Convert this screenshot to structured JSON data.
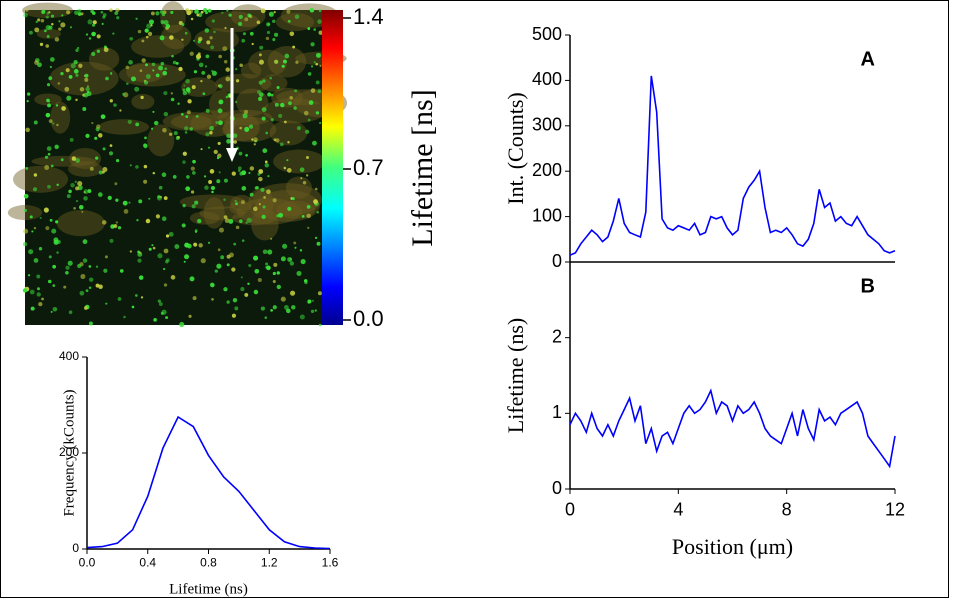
{
  "chart_data": [
    {
      "type": "colorbar",
      "clabel": "Lifetime [ns]",
      "clim": [
        0,
        1.4
      ],
      "cticks": [
        {
          "value": 0,
          "label": "0.0"
        },
        0.7,
        1.4
      ]
    },
    {
      "type": "line",
      "xlabel": "Lifetime (ns)",
      "ylabel": "Frequency (kCounts)",
      "x": [
        0,
        0.1,
        0.2,
        0.3,
        0.4,
        0.5,
        0.6,
        0.7,
        0.8,
        0.9,
        1.0,
        1.1,
        1.2,
        1.3,
        1.4,
        1.5,
        1.6
      ],
      "series": [
        {
          "color": "#0000ff",
          "values": [
            3,
            5,
            12,
            40,
            110,
            210,
            275,
            255,
            195,
            150,
            120,
            80,
            40,
            15,
            5,
            2,
            1
          ]
        }
      ],
      "xlim": [
        0,
        1.6
      ],
      "xticks": [
        {
          "value": 0,
          "label": "0.0"
        },
        0.4,
        0.8,
        1.2,
        1.6
      ],
      "ylim": [
        0,
        400
      ],
      "yticks": [
        0,
        200,
        400
      ]
    },
    {
      "type": "line",
      "annotation": "A",
      "ylabel": "Int. (Counts)",
      "x": [
        0,
        0.2,
        0.4,
        0.6,
        0.8,
        1,
        1.2,
        1.4,
        1.6,
        1.8,
        2,
        2.2,
        2.4,
        2.6,
        2.8,
        3,
        3.2,
        3.4,
        3.6,
        3.8,
        4,
        4.2,
        4.4,
        4.6,
        4.8,
        5,
        5.2,
        5.4,
        5.6,
        5.8,
        6,
        6.2,
        6.4,
        6.6,
        6.8,
        7,
        7.2,
        7.4,
        7.6,
        7.8,
        8,
        8.2,
        8.4,
        8.6,
        8.8,
        9,
        9.2,
        9.4,
        9.6,
        9.8,
        10,
        10.2,
        10.4,
        10.6,
        10.8,
        11,
        11.2,
        11.4,
        11.6,
        11.8,
        12
      ],
      "series": [
        {
          "color": "#0000ff",
          "values": [
            15,
            20,
            40,
            55,
            70,
            60,
            45,
            55,
            90,
            140,
            85,
            65,
            60,
            55,
            110,
            410,
            330,
            95,
            75,
            70,
            80,
            75,
            70,
            85,
            60,
            65,
            100,
            95,
            100,
            75,
            60,
            70,
            140,
            165,
            180,
            200,
            120,
            65,
            70,
            65,
            75,
            60,
            40,
            35,
            50,
            85,
            160,
            120,
            130,
            90,
            100,
            85,
            80,
            100,
            80,
            60,
            50,
            40,
            25,
            20,
            25
          ]
        }
      ],
      "xlim": [
        0,
        12
      ],
      "ylim": [
        0,
        500
      ],
      "yticks": [
        0,
        100,
        200,
        300,
        400,
        500
      ]
    },
    {
      "type": "line",
      "annotation": "B",
      "ylabel": "Lifetime (ns)",
      "xlabel": "Position (μm)",
      "x": [
        0,
        0.2,
        0.4,
        0.6,
        0.8,
        1,
        1.2,
        1.4,
        1.6,
        1.8,
        2,
        2.2,
        2.4,
        2.6,
        2.8,
        3,
        3.2,
        3.4,
        3.6,
        3.8,
        4,
        4.2,
        4.4,
        4.6,
        4.8,
        5,
        5.2,
        5.4,
        5.6,
        5.8,
        6,
        6.2,
        6.4,
        6.6,
        6.8,
        7,
        7.2,
        7.4,
        7.6,
        7.8,
        8,
        8.2,
        8.4,
        8.6,
        8.8,
        9,
        9.2,
        9.4,
        9.6,
        9.8,
        10,
        10.2,
        10.4,
        10.6,
        10.8,
        11,
        11.2,
        11.4,
        11.6,
        11.8,
        12
      ],
      "series": [
        {
          "color": "#0000ff",
          "values": [
            0.85,
            1.0,
            0.9,
            0.75,
            1.0,
            0.8,
            0.7,
            0.85,
            0.7,
            0.9,
            1.05,
            1.2,
            0.9,
            1.1,
            0.6,
            0.8,
            0.5,
            0.7,
            0.75,
            0.6,
            0.8,
            1.0,
            1.1,
            1.0,
            1.05,
            1.15,
            1.3,
            1.0,
            1.15,
            1.1,
            0.9,
            1.1,
            1.0,
            1.05,
            1.15,
            1.0,
            0.8,
            0.7,
            0.65,
            0.6,
            0.8,
            1.0,
            0.7,
            1.05,
            0.8,
            0.65,
            1.05,
            0.9,
            0.95,
            0.85,
            1.0,
            1.05,
            1.1,
            1.15,
            1.0,
            0.7,
            0.6,
            0.5,
            0.4,
            0.3,
            0.7
          ]
        }
      ],
      "xlim": [
        0,
        12
      ],
      "xticks": [
        0,
        4,
        8,
        12
      ],
      "ylim": [
        0,
        3
      ],
      "yticks": [
        0,
        1,
        2
      ]
    }
  ]
}
